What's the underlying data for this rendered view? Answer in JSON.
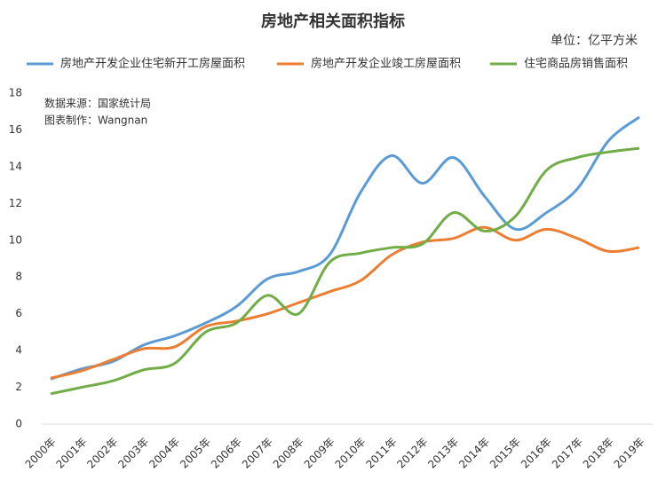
{
  "chart_data": {
    "type": "line",
    "title": "房地产相关面积指标",
    "unit": "单位：亿平方米",
    "notes": [
      "数据来源：国家统计局",
      "图表制作：Wangnan"
    ],
    "categories": [
      "2000年",
      "2001年",
      "2002年",
      "2003年",
      "2004年",
      "2005年",
      "2006年",
      "2007年",
      "2008年",
      "2009年",
      "2010年",
      "2011年",
      "2012年",
      "2013年",
      "2014年",
      "2015年",
      "2016年",
      "2017年",
      "2018年",
      "2019年"
    ],
    "series": [
      {
        "name": "房地产开发企业住宅新开工房屋面积",
        "color": "#5b9bd5",
        "values": [
          2.45,
          3.0,
          3.4,
          4.3,
          4.8,
          5.5,
          6.4,
          7.9,
          8.3,
          9.2,
          12.6,
          14.6,
          13.1,
          14.5,
          12.4,
          10.6,
          11.5,
          12.8,
          15.4,
          16.7
        ]
      },
      {
        "name": "房地产开发企业竣工房屋面积",
        "color": "#ed7d31",
        "values": [
          2.5,
          2.9,
          3.5,
          4.1,
          4.2,
          5.3,
          5.6,
          6.0,
          6.6,
          7.2,
          7.8,
          9.2,
          9.9,
          10.1,
          10.7,
          10.0,
          10.6,
          10.1,
          9.4,
          9.6
        ]
      },
      {
        "name": "住宅商品房销售面积",
        "color": "#70ad47",
        "values": [
          1.65,
          2.0,
          2.35,
          2.95,
          3.3,
          5.0,
          5.5,
          7.0,
          6.0,
          8.8,
          9.3,
          9.6,
          9.8,
          11.5,
          10.5,
          11.3,
          13.8,
          14.5,
          14.8,
          15.0
        ]
      }
    ],
    "ylim": [
      0,
      18
    ],
    "yticks": [
      0,
      2,
      4,
      6,
      8,
      10,
      12,
      14,
      16,
      18
    ],
    "smooth": true
  }
}
